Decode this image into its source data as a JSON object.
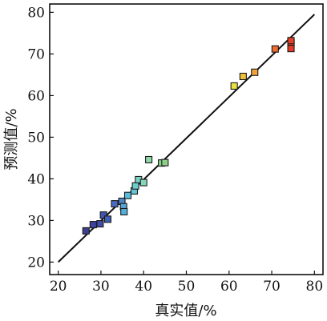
{
  "chart_data": {
    "type": "scatter",
    "xlabel": "真实值/%",
    "ylabel": "预测值/%",
    "xlim": [
      18,
      82
    ],
    "ylim": [
      17,
      82
    ],
    "xticks": [
      20,
      30,
      40,
      50,
      60,
      70,
      80
    ],
    "yticks": [
      20,
      30,
      40,
      50,
      60,
      70,
      80
    ],
    "grid": false,
    "legend": "none",
    "fit_line": {
      "x": [
        20,
        80
      ],
      "y": [
        20,
        79.5
      ],
      "color": "#111111"
    },
    "points": [
      {
        "x": 26.5,
        "y": 27.5,
        "color": "#3b3f8f"
      },
      {
        "x": 28.2,
        "y": 29.0,
        "color": "#3d44a0"
      },
      {
        "x": 29.8,
        "y": 29.2,
        "color": "#3f4ca8"
      },
      {
        "x": 30.6,
        "y": 31.3,
        "color": "#4156b2"
      },
      {
        "x": 31.6,
        "y": 30.3,
        "color": "#4160b8"
      },
      {
        "x": 33.2,
        "y": 34.0,
        "color": "#4a6cc0"
      },
      {
        "x": 34.9,
        "y": 34.6,
        "color": "#4f86c8"
      },
      {
        "x": 35.3,
        "y": 33.3,
        "color": "#5aa3d4"
      },
      {
        "x": 35.4,
        "y": 32.1,
        "color": "#55b0da"
      },
      {
        "x": 36.3,
        "y": 36.0,
        "color": "#5bbcdc"
      },
      {
        "x": 37.8,
        "y": 37.1,
        "color": "#62c6d8"
      },
      {
        "x": 38.1,
        "y": 38.3,
        "color": "#6ccdd0"
      },
      {
        "x": 38.8,
        "y": 39.8,
        "color": "#78d2c4"
      },
      {
        "x": 40.0,
        "y": 39.1,
        "color": "#84d6b8"
      },
      {
        "x": 41.2,
        "y": 44.6,
        "color": "#8fd8a8"
      },
      {
        "x": 44.2,
        "y": 43.8,
        "color": "#88cf8c"
      },
      {
        "x": 45.0,
        "y": 43.9,
        "color": "#8ecf88"
      },
      {
        "x": 61.2,
        "y": 62.3,
        "color": "#e8e040"
      },
      {
        "x": 63.3,
        "y": 64.6,
        "color": "#efc03c"
      },
      {
        "x": 66.0,
        "y": 65.6,
        "color": "#f0a33a"
      },
      {
        "x": 70.8,
        "y": 71.2,
        "color": "#ee6a30"
      },
      {
        "x": 74.5,
        "y": 72.7,
        "color": "#e83c28"
      },
      {
        "x": 74.5,
        "y": 71.3,
        "color": "#e53a28"
      },
      {
        "x": 74.5,
        "y": 73.2,
        "color": "#e34028"
      }
    ]
  }
}
